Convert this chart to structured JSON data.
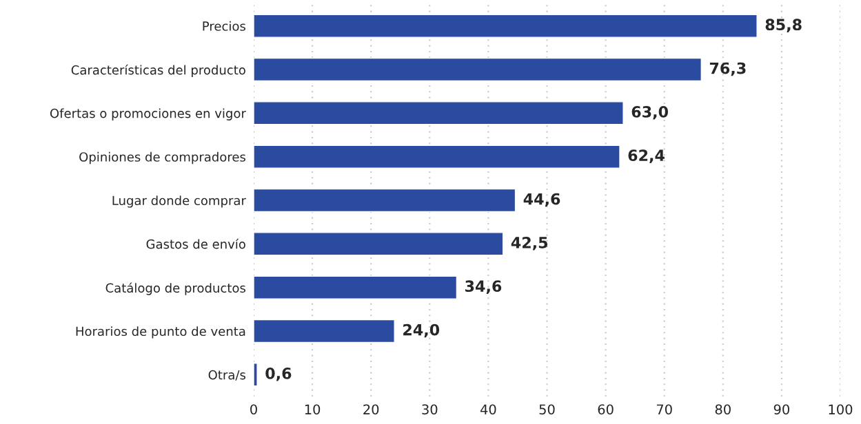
{
  "chart_data": {
    "type": "bar",
    "orientation": "horizontal",
    "categories": [
      "Precios",
      "Características del producto",
      "Ofertas o promociones en vigor",
      "Opiniones de compradores",
      "Lugar donde comprar",
      "Gastos de envío",
      "Catálogo de productos",
      "Horarios de punto de venta",
      "Otra/s"
    ],
    "values": [
      85.8,
      76.3,
      63.0,
      62.4,
      44.6,
      42.5,
      34.6,
      24.0,
      0.6
    ],
    "value_labels": [
      "85,8",
      "76,3",
      "63,0",
      "62,4",
      "44,6",
      "42,5",
      "34,6",
      "24,0",
      "0,6"
    ],
    "color": "#2b4ba0",
    "xlim": [
      0,
      100
    ],
    "xticks": [
      0,
      10,
      20,
      30,
      40,
      50,
      60,
      70,
      80,
      90,
      100
    ],
    "grid": "x",
    "legend": false
  }
}
